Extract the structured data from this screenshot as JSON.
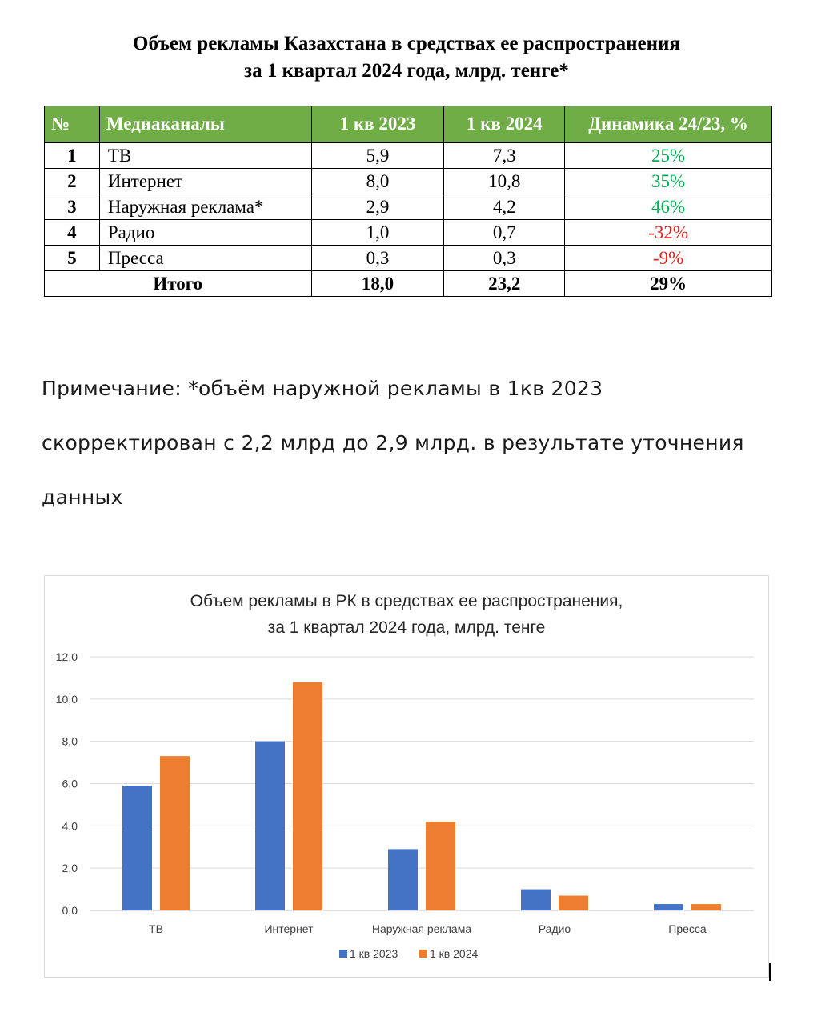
{
  "document": {
    "title_line1": "Объем рекламы Казахстана в средствах ее распространения",
    "title_line2": "за 1 квартал 2024 года, млрд. тенге*"
  },
  "table": {
    "headers": [
      "№",
      "Медиаканалы",
      "1 кв 2023",
      "1 кв 2024",
      "Динамика 24/23, %"
    ],
    "rows": [
      {
        "n": "1",
        "channel": "ТВ",
        "q2023": "5,9",
        "q2024": "7,3",
        "dyn": "25%",
        "trend": "up"
      },
      {
        "n": "2",
        "channel": "Интернет",
        "q2023": "8,0",
        "q2024": "10,8",
        "dyn": "35%",
        "trend": "up"
      },
      {
        "n": "3",
        "channel": "Наружная реклама*",
        "q2023": "2,9",
        "q2024": "4,2",
        "dyn": "46%",
        "trend": "up"
      },
      {
        "n": "4",
        "channel": "Радио",
        "q2023": "1,0",
        "q2024": "0,7",
        "dyn": "-32%",
        "trend": "down"
      },
      {
        "n": "5",
        "channel": "Пресса",
        "q2023": "0,3",
        "q2024": "0,3",
        "dyn": "-9%",
        "trend": "down"
      }
    ],
    "total": {
      "label": "Итого",
      "q2023": "18,0",
      "q2024": "23,2",
      "dyn": "29%"
    },
    "colors": {
      "header_bg": "#70ad47",
      "positive": "#00b050",
      "negative": "#e0201b"
    }
  },
  "note": {
    "line1": "Примечание: *объём наружной рекламы в 1кв 2023",
    "line2": "скорректирован с 2,2 млрд до 2,9 млрд. в результате уточнения",
    "line3": "данных"
  },
  "chart_data": {
    "type": "bar",
    "title_line1": "Объем рекламы в РК в средствах ее распространения,",
    "title_line2": "за 1 квартал 2024 года, млрд. тенге",
    "categories": [
      "ТВ",
      "Интернет",
      "Наружная реклама",
      "Радио",
      "Пресса"
    ],
    "series": [
      {
        "name": "1 кв 2023",
        "color": "#4472c4",
        "values": [
          5.9,
          8.0,
          2.9,
          1.0,
          0.3
        ]
      },
      {
        "name": "1 кв 2024",
        "color": "#ed7d31",
        "values": [
          7.3,
          10.8,
          4.2,
          0.7,
          0.3
        ]
      }
    ],
    "ylim": [
      0,
      12
    ],
    "yticks": [
      "0,0",
      "2,0",
      "4,0",
      "6,0",
      "8,0",
      "10,0",
      "12,0"
    ],
    "xlabel": "",
    "ylabel": "",
    "grid": true,
    "legend": "bottom"
  }
}
